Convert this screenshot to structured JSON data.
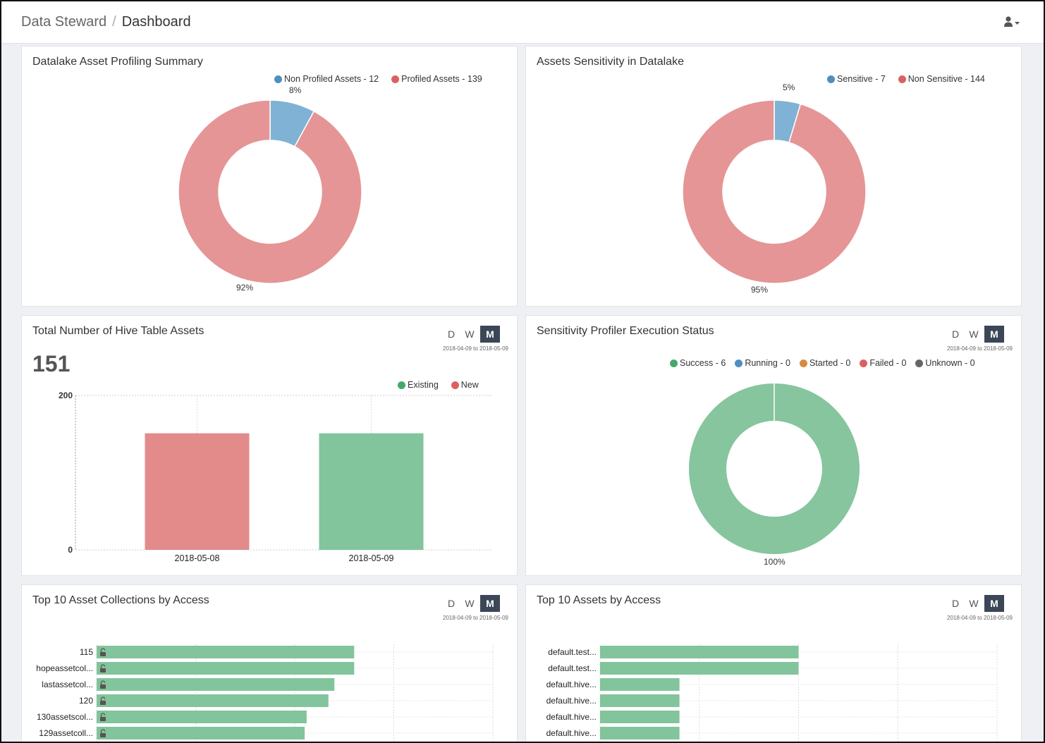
{
  "breadcrumb": {
    "root": "Data Steward",
    "separator": "/",
    "current": "Dashboard"
  },
  "header": {
    "user_icon": "user-icon"
  },
  "colors": {
    "blue": "#7fb2d4",
    "red": "#e59595",
    "green": "#86c59d",
    "orange": "#d98a3f",
    "gray": "#666666",
    "active_btn": "#3b4656"
  },
  "panels": {
    "profiling": {
      "title": "Datalake Asset Profiling Summary",
      "legend": [
        "Non Profiled Assets - 12",
        "Profiled Assets - 139"
      ],
      "small_label": "8%",
      "large_label": "92%"
    },
    "sensitivity": {
      "title": "Assets Sensitivity in Datalake",
      "legend": [
        "Sensitive - 7",
        "Non Sensitive - 144"
      ],
      "small_label": "5%",
      "large_label": "95%"
    },
    "hive": {
      "title": "Total Number of Hive Table Assets",
      "total": "151",
      "legend": [
        "Existing",
        "New"
      ],
      "buttons": [
        "D",
        "W",
        "M"
      ],
      "range": "2018-04-09 to 2018-05-09"
    },
    "profiler": {
      "title": "Sensitivity Profiler Execution Status",
      "legend": [
        "Success - 6",
        "Running - 0",
        "Started - 0",
        "Failed - 0",
        "Unknown - 0"
      ],
      "label": "100%",
      "buttons": [
        "D",
        "W",
        "M"
      ],
      "range": "2018-04-09 to 2018-05-09"
    },
    "collections": {
      "title": "Top 10 Asset Collections by Access",
      "buttons": [
        "D",
        "W",
        "M"
      ],
      "range": "2018-04-09 to 2018-05-09"
    },
    "assets": {
      "title": "Top 10 Assets by Access",
      "buttons": [
        "D",
        "W",
        "M"
      ],
      "range": "2018-04-09 to 2018-05-09"
    }
  },
  "chart_data": [
    {
      "type": "pie",
      "title": "Datalake Asset Profiling Summary",
      "categories": [
        "Non Profiled Assets",
        "Profiled Assets"
      ],
      "values": [
        12,
        139
      ],
      "percent_labels": [
        "8%",
        "92%"
      ]
    },
    {
      "type": "pie",
      "title": "Assets Sensitivity in Datalake",
      "categories": [
        "Sensitive",
        "Non Sensitive"
      ],
      "values": [
        7,
        144
      ],
      "percent_labels": [
        "5%",
        "95%"
      ]
    },
    {
      "type": "bar",
      "title": "Total Number of Hive Table Assets",
      "categories": [
        "2018-05-08",
        "2018-05-09"
      ],
      "series": [
        {
          "name": "New",
          "values": [
            151,
            0
          ]
        },
        {
          "name": "Existing",
          "values": [
            0,
            151
          ]
        }
      ],
      "ylim": [
        0,
        200
      ],
      "yticks": [
        "0",
        "200"
      ],
      "grid": true
    },
    {
      "type": "pie",
      "title": "Sensitivity Profiler Execution Status",
      "categories": [
        "Success",
        "Running",
        "Started",
        "Failed",
        "Unknown"
      ],
      "values": [
        6,
        0,
        0,
        0,
        0
      ],
      "percent_labels": [
        "100%"
      ]
    },
    {
      "type": "bar",
      "orientation": "horizontal",
      "title": "Top 10 Asset Collections by Access",
      "categories": [
        "115",
        "hopeassetcol...",
        "lastassetcol...",
        "120",
        "130assetscol...",
        "129assetcoll..."
      ],
      "values": [
        13,
        13,
        12,
        11.7,
        10.6,
        10.5
      ],
      "xlim": [
        0,
        20
      ],
      "grid": true
    },
    {
      "type": "bar",
      "orientation": "horizontal",
      "title": "Top 10 Assets by Access",
      "categories": [
        "default.test...",
        "default.test...",
        "default.hive...",
        "default.hive...",
        "default.hive...",
        "default.hive..."
      ],
      "values": [
        5,
        5,
        2,
        2,
        2,
        2
      ],
      "xlim": [
        0,
        10
      ],
      "grid": true
    }
  ]
}
